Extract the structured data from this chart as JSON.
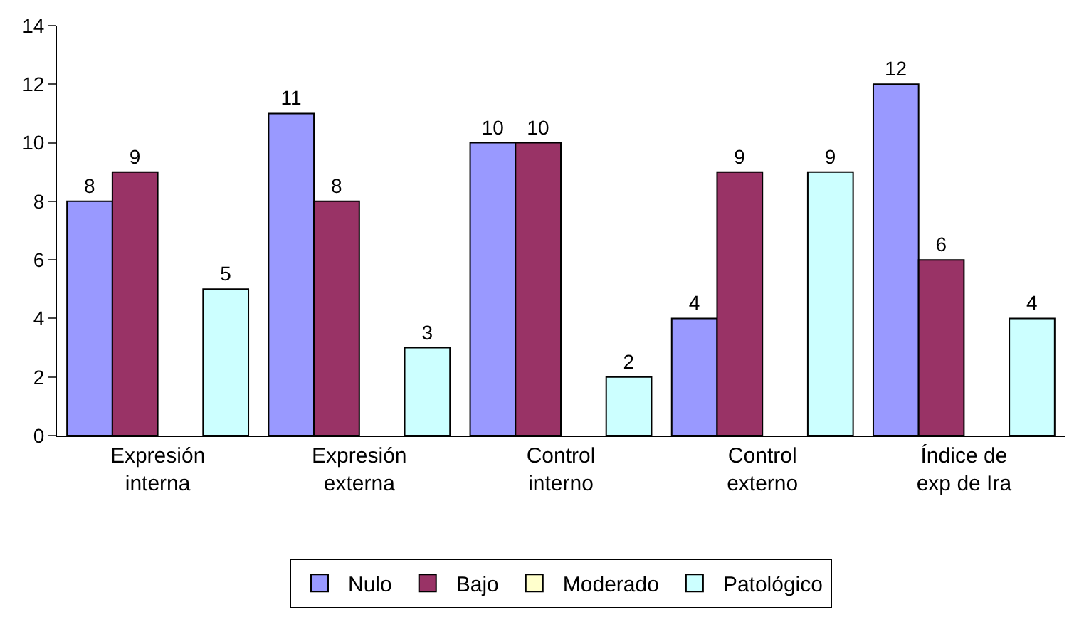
{
  "chart_data": {
    "type": "bar",
    "categories": [
      "Expresión\ninterna",
      "Expresión\nexterna",
      "Control\ninterno",
      "Control\nexterno",
      "Índice de\nexp de Ira"
    ],
    "series": [
      {
        "name": "Nulo",
        "color": "#9999ff",
        "values": [
          8,
          11,
          10,
          4,
          12
        ]
      },
      {
        "name": "Bajo",
        "color": "#993366",
        "values": [
          9,
          8,
          10,
          9,
          6
        ]
      },
      {
        "name": "Moderado",
        "color": "#ffffcc",
        "values": [
          null,
          null,
          null,
          null,
          null
        ]
      },
      {
        "name": "Patológico",
        "color": "#ccffff",
        "values": [
          5,
          3,
          2,
          9,
          4
        ]
      }
    ],
    "ylim": [
      0,
      14
    ],
    "yticks": [
      0,
      2,
      4,
      6,
      8,
      10,
      12,
      14
    ],
    "data_labels": true,
    "legend": "bottom"
  }
}
